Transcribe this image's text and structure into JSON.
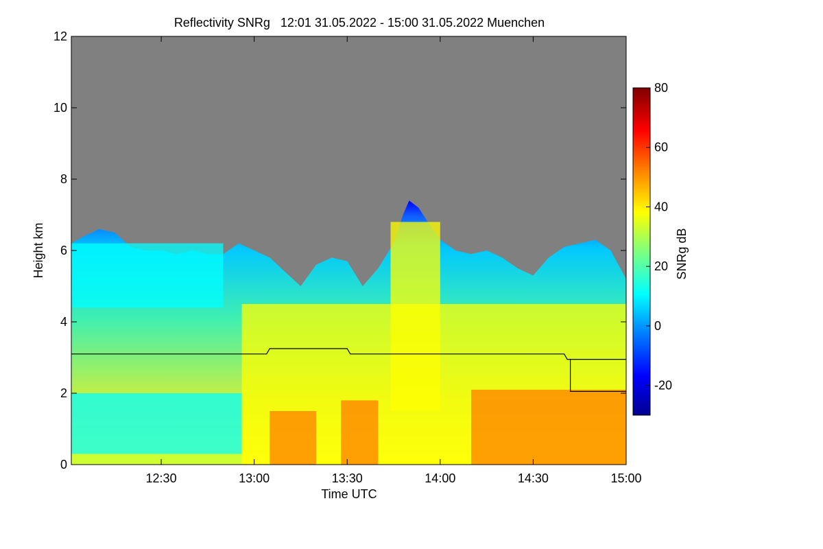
{
  "chart_data": {
    "type": "heatmap",
    "title": "Reflectivity SNRg   12:01 31.05.2022 - 15:00 31.05.2022 Muenchen",
    "xlabel": "Time UTC",
    "ylabel": "Height km",
    "colorbar_label": "SNRg dB",
    "xlim_minutes_utc": [
      721,
      900
    ],
    "x_ticks": [
      {
        "minute": 750,
        "label": "12:30"
      },
      {
        "minute": 780,
        "label": "13:00"
      },
      {
        "minute": 810,
        "label": "13:30"
      },
      {
        "minute": 840,
        "label": "14:00"
      },
      {
        "minute": 870,
        "label": "14:30"
      },
      {
        "minute": 900,
        "label": "15:00"
      }
    ],
    "ylim": [
      0,
      12
    ],
    "y_ticks": [
      {
        "value": 0,
        "label": "0"
      },
      {
        "value": 2,
        "label": "2"
      },
      {
        "value": 4,
        "label": "4"
      },
      {
        "value": 6,
        "label": "6"
      },
      {
        "value": 8,
        "label": "8"
      },
      {
        "value": 10,
        "label": "10"
      },
      {
        "value": 12,
        "label": "12"
      }
    ],
    "colorbar_range": [
      -30,
      80
    ],
    "colorbar_ticks": [
      {
        "value": -20,
        "label": "-20"
      },
      {
        "value": 0,
        "label": "0"
      },
      {
        "value": 20,
        "label": "20"
      },
      {
        "value": 40,
        "label": "40"
      },
      {
        "value": 60,
        "label": "60"
      },
      {
        "value": 80,
        "label": "80"
      }
    ],
    "colormap": [
      "#00008f",
      "#0000ff",
      "#007fff",
      "#00ffff",
      "#7fff7f",
      "#ffff00",
      "#ff7f00",
      "#ff0000",
      "#7f0000"
    ],
    "background_color": "#808080",
    "cloud_top_km": [
      [
        721,
        6.2
      ],
      [
        725,
        6.4
      ],
      [
        730,
        6.6
      ],
      [
        735,
        6.5
      ],
      [
        740,
        6.1
      ],
      [
        745,
        6.0
      ],
      [
        750,
        6.0
      ],
      [
        755,
        5.9
      ],
      [
        760,
        6.0
      ],
      [
        765,
        5.9
      ],
      [
        770,
        5.9
      ],
      [
        775,
        6.2
      ],
      [
        780,
        6.0
      ],
      [
        785,
        5.8
      ],
      [
        790,
        5.4
      ],
      [
        795,
        5.0
      ],
      [
        800,
        5.6
      ],
      [
        805,
        5.8
      ],
      [
        810,
        5.7
      ],
      [
        815,
        5.0
      ],
      [
        820,
        5.5
      ],
      [
        825,
        6.2
      ],
      [
        828,
        7.0
      ],
      [
        830,
        7.4
      ],
      [
        833,
        7.2
      ],
      [
        836,
        6.8
      ],
      [
        840,
        6.3
      ],
      [
        845,
        6.0
      ],
      [
        850,
        5.9
      ],
      [
        855,
        6.0
      ],
      [
        860,
        5.8
      ],
      [
        865,
        5.5
      ],
      [
        870,
        5.3
      ],
      [
        875,
        5.8
      ],
      [
        880,
        6.1
      ],
      [
        885,
        6.2
      ],
      [
        890,
        6.3
      ],
      [
        895,
        6.0
      ],
      [
        900,
        5.2
      ]
    ],
    "melting_layer_km": [
      [
        721,
        3.1
      ],
      [
        784,
        3.1
      ],
      [
        785,
        3.25
      ],
      [
        810,
        3.25
      ],
      [
        811,
        3.1
      ],
      [
        880,
        3.1
      ],
      [
        881,
        2.95
      ],
      [
        900,
        2.95
      ]
    ],
    "melting_layer_lower_km": [
      [
        882,
        2.95
      ],
      [
        882,
        2.05
      ],
      [
        900,
        2.05
      ]
    ],
    "intensity_regions_db": [
      {
        "x0": 721,
        "x1": 776,
        "y0": 0,
        "y1": 2.0,
        "db": 12
      },
      {
        "x0": 721,
        "x1": 776,
        "y0": 0,
        "y1": 0.3,
        "db": 35
      },
      {
        "x0": 721,
        "x1": 770,
        "y0": 4.4,
        "y1": 6.2,
        "db": 12
      },
      {
        "x0": 776,
        "x1": 900,
        "y0": 0,
        "y1": 2.1,
        "db": 42
      },
      {
        "x0": 785,
        "x1": 800,
        "y0": 0,
        "y1": 1.5,
        "db": 58
      },
      {
        "x0": 808,
        "x1": 820,
        "y0": 0,
        "y1": 1.8,
        "db": 52
      },
      {
        "x0": 850,
        "x1": 900,
        "y0": 0,
        "y1": 2.1,
        "db": 58
      },
      {
        "x0": 776,
        "x1": 900,
        "y0": 2.1,
        "y1": 4.5,
        "db": 32
      },
      {
        "x0": 824,
        "x1": 840,
        "y0": 1.5,
        "y1": 6.8,
        "db": 33
      }
    ]
  }
}
